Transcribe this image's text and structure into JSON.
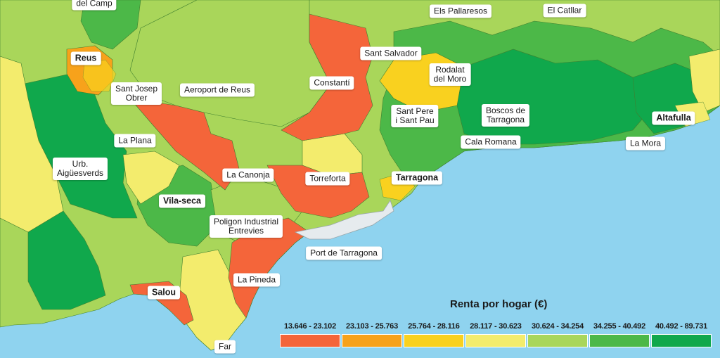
{
  "map": {
    "sea_color": "#8fd3ef",
    "place_labels": [
      {
        "id": "del-camp",
        "text": "del Camp",
        "bold": false
      },
      {
        "id": "reus",
        "text": "Reus",
        "bold": true
      },
      {
        "id": "els-pallaresos",
        "text": "Els Pallaresos",
        "bold": false
      },
      {
        "id": "el-catllar",
        "text": "El Catllar",
        "bold": false
      },
      {
        "id": "sant-salvador",
        "text": "Sant Salvador",
        "bold": false
      },
      {
        "id": "constanti",
        "text": "Constantí",
        "bold": false
      },
      {
        "id": "rodalat-del-moro",
        "text": "Rodalat\ndel Moro",
        "bold": false
      },
      {
        "id": "sant-josep-obrer",
        "text": "Sant Josep\nObrer",
        "bold": false
      },
      {
        "id": "aeroport-de-reus",
        "text": "Aeroport de Reus",
        "bold": false
      },
      {
        "id": "sant-pere-i-sant-pau",
        "text": "Sant Pere\ni Sant Pau",
        "bold": false
      },
      {
        "id": "boscos-de-tarragona",
        "text": "Boscos de\nTarragona",
        "bold": false
      },
      {
        "id": "altafulla",
        "text": "Altafulla",
        "bold": true
      },
      {
        "id": "la-plana",
        "text": "La Plana",
        "bold": false
      },
      {
        "id": "cala-romana",
        "text": "Cala Romana",
        "bold": false
      },
      {
        "id": "la-mora",
        "text": "La Mora",
        "bold": false
      },
      {
        "id": "urb-aiguesverds",
        "text": "Urb.\nAigüesverds",
        "bold": false
      },
      {
        "id": "la-canonja",
        "text": "La Canonja",
        "bold": false
      },
      {
        "id": "torreforta",
        "text": "Torreforta",
        "bold": false
      },
      {
        "id": "tarragona",
        "text": "Tarragona",
        "bold": true
      },
      {
        "id": "vila-seca",
        "text": "Vila-seca",
        "bold": true
      },
      {
        "id": "poligon-industrial-entrevies",
        "text": "Poligon Industrial\nEntrevies",
        "bold": false
      },
      {
        "id": "port-de-tarragona",
        "text": "Port de Tarragona",
        "bold": false
      },
      {
        "id": "la-pineda",
        "text": "La Pineda",
        "bold": false
      },
      {
        "id": "salou",
        "text": "Salou",
        "bold": true
      },
      {
        "id": "far",
        "text": "Far",
        "bold": false
      }
    ]
  },
  "legend": {
    "title": "Renta por hogar (€)",
    "items": [
      {
        "range": "13.646 - 23.102",
        "color": "#f4653a"
      },
      {
        "range": "23.103 - 25.763",
        "color": "#f7a21b"
      },
      {
        "range": "25.764 - 28.116",
        "color": "#f9d11f"
      },
      {
        "range": "28.117 - 30.623",
        "color": "#f3ec6d"
      },
      {
        "range": "30.624 - 34.254",
        "color": "#a9d65a"
      },
      {
        "range": "34.255 - 40.492",
        "color": "#4cb848"
      },
      {
        "range": "40.492 - 89.731",
        "color": "#10a84c"
      }
    ]
  }
}
